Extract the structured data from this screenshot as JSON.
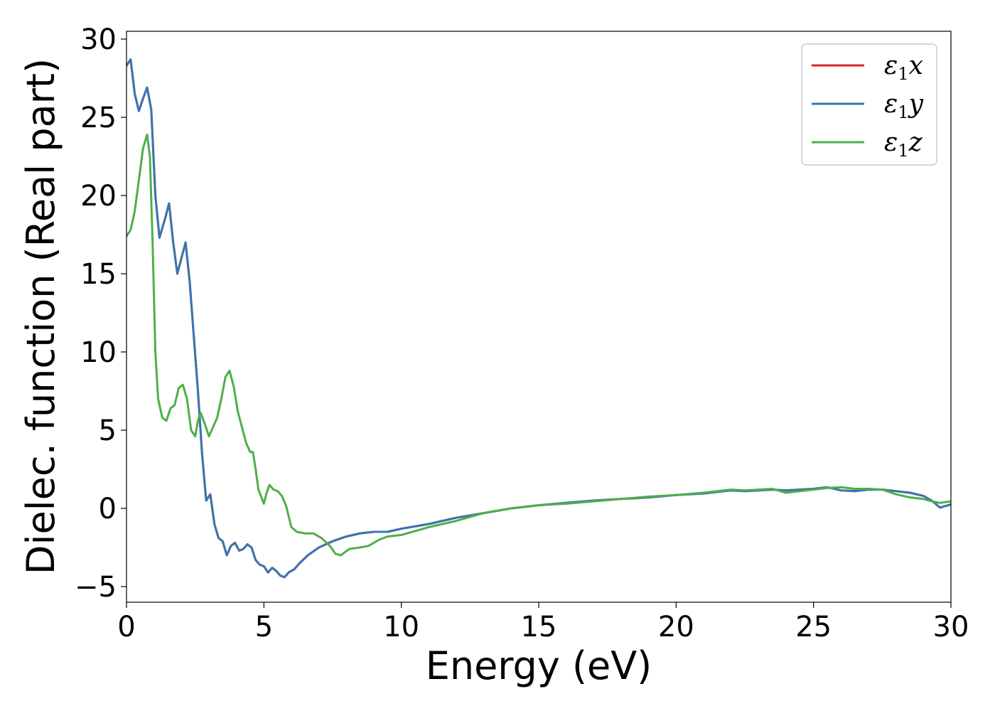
{
  "chart_data": {
    "type": "line",
    "title": "",
    "xlabel": "Energy (eV)",
    "ylabel": "Dielec. function (Real part)",
    "xlim": [
      0,
      30
    ],
    "ylim": [
      -6,
      30.5
    ],
    "xticks": [
      0,
      5,
      10,
      15,
      20,
      25,
      30
    ],
    "yticks": [
      -5,
      0,
      5,
      10,
      15,
      20,
      25,
      30
    ],
    "xtick_labels": [
      "0",
      "5",
      "10",
      "15",
      "20",
      "25",
      "30"
    ],
    "ytick_labels": [
      "−5",
      "0",
      "5",
      "10",
      "15",
      "20",
      "25",
      "30"
    ],
    "grid": false,
    "legend_position": "top-right",
    "series": [
      {
        "name": "ε₁x",
        "legend": {
          "base": "ε",
          "sub": "1",
          "var": "x"
        },
        "color": "#d62728",
        "x": [
          0,
          0.15,
          0.3,
          0.45,
          0.6,
          0.75,
          0.9,
          1.05,
          1.2,
          1.4,
          1.55,
          1.7,
          1.85,
          2.0,
          2.15,
          2.3,
          2.45,
          2.6,
          2.75,
          2.9,
          3.05,
          3.2,
          3.35,
          3.5,
          3.65,
          3.8,
          3.95,
          4.1,
          4.25,
          4.4,
          4.55,
          4.7,
          4.85,
          5.0,
          5.15,
          5.3,
          5.45,
          5.6,
          5.75,
          5.9,
          6.1,
          6.3,
          6.6,
          7.0,
          7.5,
          8.0,
          8.5,
          9.0,
          9.5,
          10.0,
          11.0,
          12.0,
          13.0,
          14.0,
          15.0,
          16.0,
          17.0,
          18.0,
          19.0,
          20.0,
          21.0,
          22.0,
          22.5,
          23.0,
          23.5,
          24.0,
          24.5,
          25.0,
          25.5,
          26.0,
          26.5,
          27.0,
          27.5,
          28.0,
          28.5,
          29.0,
          29.3,
          29.6,
          30.0
        ],
        "y": [
          28.3,
          28.7,
          26.5,
          25.4,
          26.2,
          26.9,
          25.5,
          20.0,
          17.3,
          18.5,
          19.5,
          17.0,
          15.0,
          16.0,
          17.0,
          14.5,
          11.0,
          7.5,
          3.5,
          0.5,
          0.9,
          -1.0,
          -1.9,
          -2.1,
          -3.0,
          -2.4,
          -2.2,
          -2.7,
          -2.6,
          -2.3,
          -2.5,
          -3.3,
          -3.6,
          -3.7,
          -4.1,
          -3.8,
          -4.0,
          -4.3,
          -4.4,
          -4.1,
          -3.9,
          -3.5,
          -3.0,
          -2.5,
          -2.1,
          -1.8,
          -1.6,
          -1.5,
          -1.5,
          -1.3,
          -1.0,
          -0.6,
          -0.3,
          0.0,
          0.2,
          0.35,
          0.5,
          0.6,
          0.7,
          0.85,
          0.95,
          1.15,
          1.1,
          1.15,
          1.2,
          1.15,
          1.2,
          1.25,
          1.35,
          1.15,
          1.1,
          1.2,
          1.2,
          1.1,
          1.0,
          0.8,
          0.5,
          0.05,
          0.25
        ]
      },
      {
        "name": "ε₁y",
        "legend": {
          "base": "ε",
          "sub": "1",
          "var": "y"
        },
        "color": "#3a75b0",
        "x": [
          0,
          0.15,
          0.3,
          0.45,
          0.6,
          0.75,
          0.9,
          1.05,
          1.2,
          1.4,
          1.55,
          1.7,
          1.85,
          2.0,
          2.15,
          2.3,
          2.45,
          2.6,
          2.75,
          2.9,
          3.05,
          3.2,
          3.35,
          3.5,
          3.65,
          3.8,
          3.95,
          4.1,
          4.25,
          4.4,
          4.55,
          4.7,
          4.85,
          5.0,
          5.15,
          5.3,
          5.45,
          5.6,
          5.75,
          5.9,
          6.1,
          6.3,
          6.6,
          7.0,
          7.5,
          8.0,
          8.5,
          9.0,
          9.5,
          10.0,
          11.0,
          12.0,
          13.0,
          14.0,
          15.0,
          16.0,
          17.0,
          18.0,
          19.0,
          20.0,
          21.0,
          22.0,
          22.5,
          23.0,
          23.5,
          24.0,
          24.5,
          25.0,
          25.5,
          26.0,
          26.5,
          27.0,
          27.5,
          28.0,
          28.5,
          29.0,
          29.3,
          29.6,
          30.0
        ],
        "y": [
          28.3,
          28.7,
          26.5,
          25.4,
          26.2,
          26.9,
          25.5,
          20.0,
          17.3,
          18.5,
          19.5,
          17.0,
          15.0,
          16.0,
          17.0,
          14.5,
          11.0,
          7.5,
          3.5,
          0.5,
          0.9,
          -1.0,
          -1.9,
          -2.1,
          -3.0,
          -2.4,
          -2.2,
          -2.7,
          -2.6,
          -2.3,
          -2.5,
          -3.3,
          -3.6,
          -3.7,
          -4.1,
          -3.8,
          -4.0,
          -4.3,
          -4.4,
          -4.1,
          -3.9,
          -3.5,
          -3.0,
          -2.5,
          -2.1,
          -1.8,
          -1.6,
          -1.5,
          -1.5,
          -1.3,
          -1.0,
          -0.6,
          -0.3,
          0.0,
          0.2,
          0.35,
          0.5,
          0.6,
          0.7,
          0.85,
          0.95,
          1.15,
          1.1,
          1.15,
          1.2,
          1.15,
          1.2,
          1.25,
          1.35,
          1.15,
          1.1,
          1.2,
          1.2,
          1.1,
          1.0,
          0.8,
          0.5,
          0.05,
          0.25
        ]
      },
      {
        "name": "ε₁z",
        "legend": {
          "base": "ε",
          "sub": "1",
          "var": "z"
        },
        "color": "#4daf4a",
        "x": [
          0,
          0.15,
          0.3,
          0.45,
          0.6,
          0.75,
          0.85,
          0.95,
          1.05,
          1.15,
          1.3,
          1.45,
          1.6,
          1.75,
          1.9,
          2.05,
          2.2,
          2.35,
          2.5,
          2.6,
          2.7,
          2.85,
          3.0,
          3.15,
          3.3,
          3.45,
          3.6,
          3.75,
          3.9,
          4.05,
          4.2,
          4.35,
          4.5,
          4.6,
          4.7,
          4.8,
          5.0,
          5.1,
          5.2,
          5.35,
          5.5,
          5.65,
          5.8,
          6.0,
          6.2,
          6.5,
          6.8,
          7.1,
          7.4,
          7.6,
          7.8,
          8.1,
          8.5,
          8.8,
          9.2,
          9.5,
          10.0,
          11.0,
          12.0,
          13.0,
          14.0,
          15.0,
          16.0,
          17.0,
          18.0,
          19.0,
          20.0,
          21.0,
          22.0,
          22.5,
          23.0,
          23.5,
          24.0,
          24.5,
          25.0,
          25.5,
          26.0,
          26.5,
          27.0,
          27.5,
          28.0,
          28.5,
          29.0,
          29.3,
          29.6,
          30.0
        ],
        "y": [
          17.4,
          17.8,
          19.0,
          21.0,
          23.0,
          23.9,
          22.5,
          17.0,
          10.0,
          7.0,
          5.8,
          5.6,
          6.4,
          6.6,
          7.7,
          7.9,
          7.0,
          5.0,
          4.6,
          5.6,
          6.1,
          5.4,
          4.6,
          5.2,
          5.8,
          7.0,
          8.4,
          8.8,
          7.8,
          6.2,
          5.2,
          4.2,
          3.6,
          3.6,
          2.5,
          1.2,
          0.3,
          1.0,
          1.5,
          1.2,
          1.1,
          0.8,
          0.2,
          -1.2,
          -1.5,
          -1.6,
          -1.6,
          -1.9,
          -2.4,
          -2.9,
          -3.0,
          -2.6,
          -2.5,
          -2.4,
          -2.0,
          -1.8,
          -1.7,
          -1.2,
          -0.8,
          -0.3,
          0.0,
          0.2,
          0.3,
          0.45,
          0.6,
          0.75,
          0.85,
          1.0,
          1.2,
          1.15,
          1.2,
          1.25,
          1.0,
          1.1,
          1.2,
          1.3,
          1.35,
          1.25,
          1.25,
          1.2,
          0.9,
          0.7,
          0.6,
          0.45,
          0.35,
          0.45
        ]
      }
    ]
  }
}
